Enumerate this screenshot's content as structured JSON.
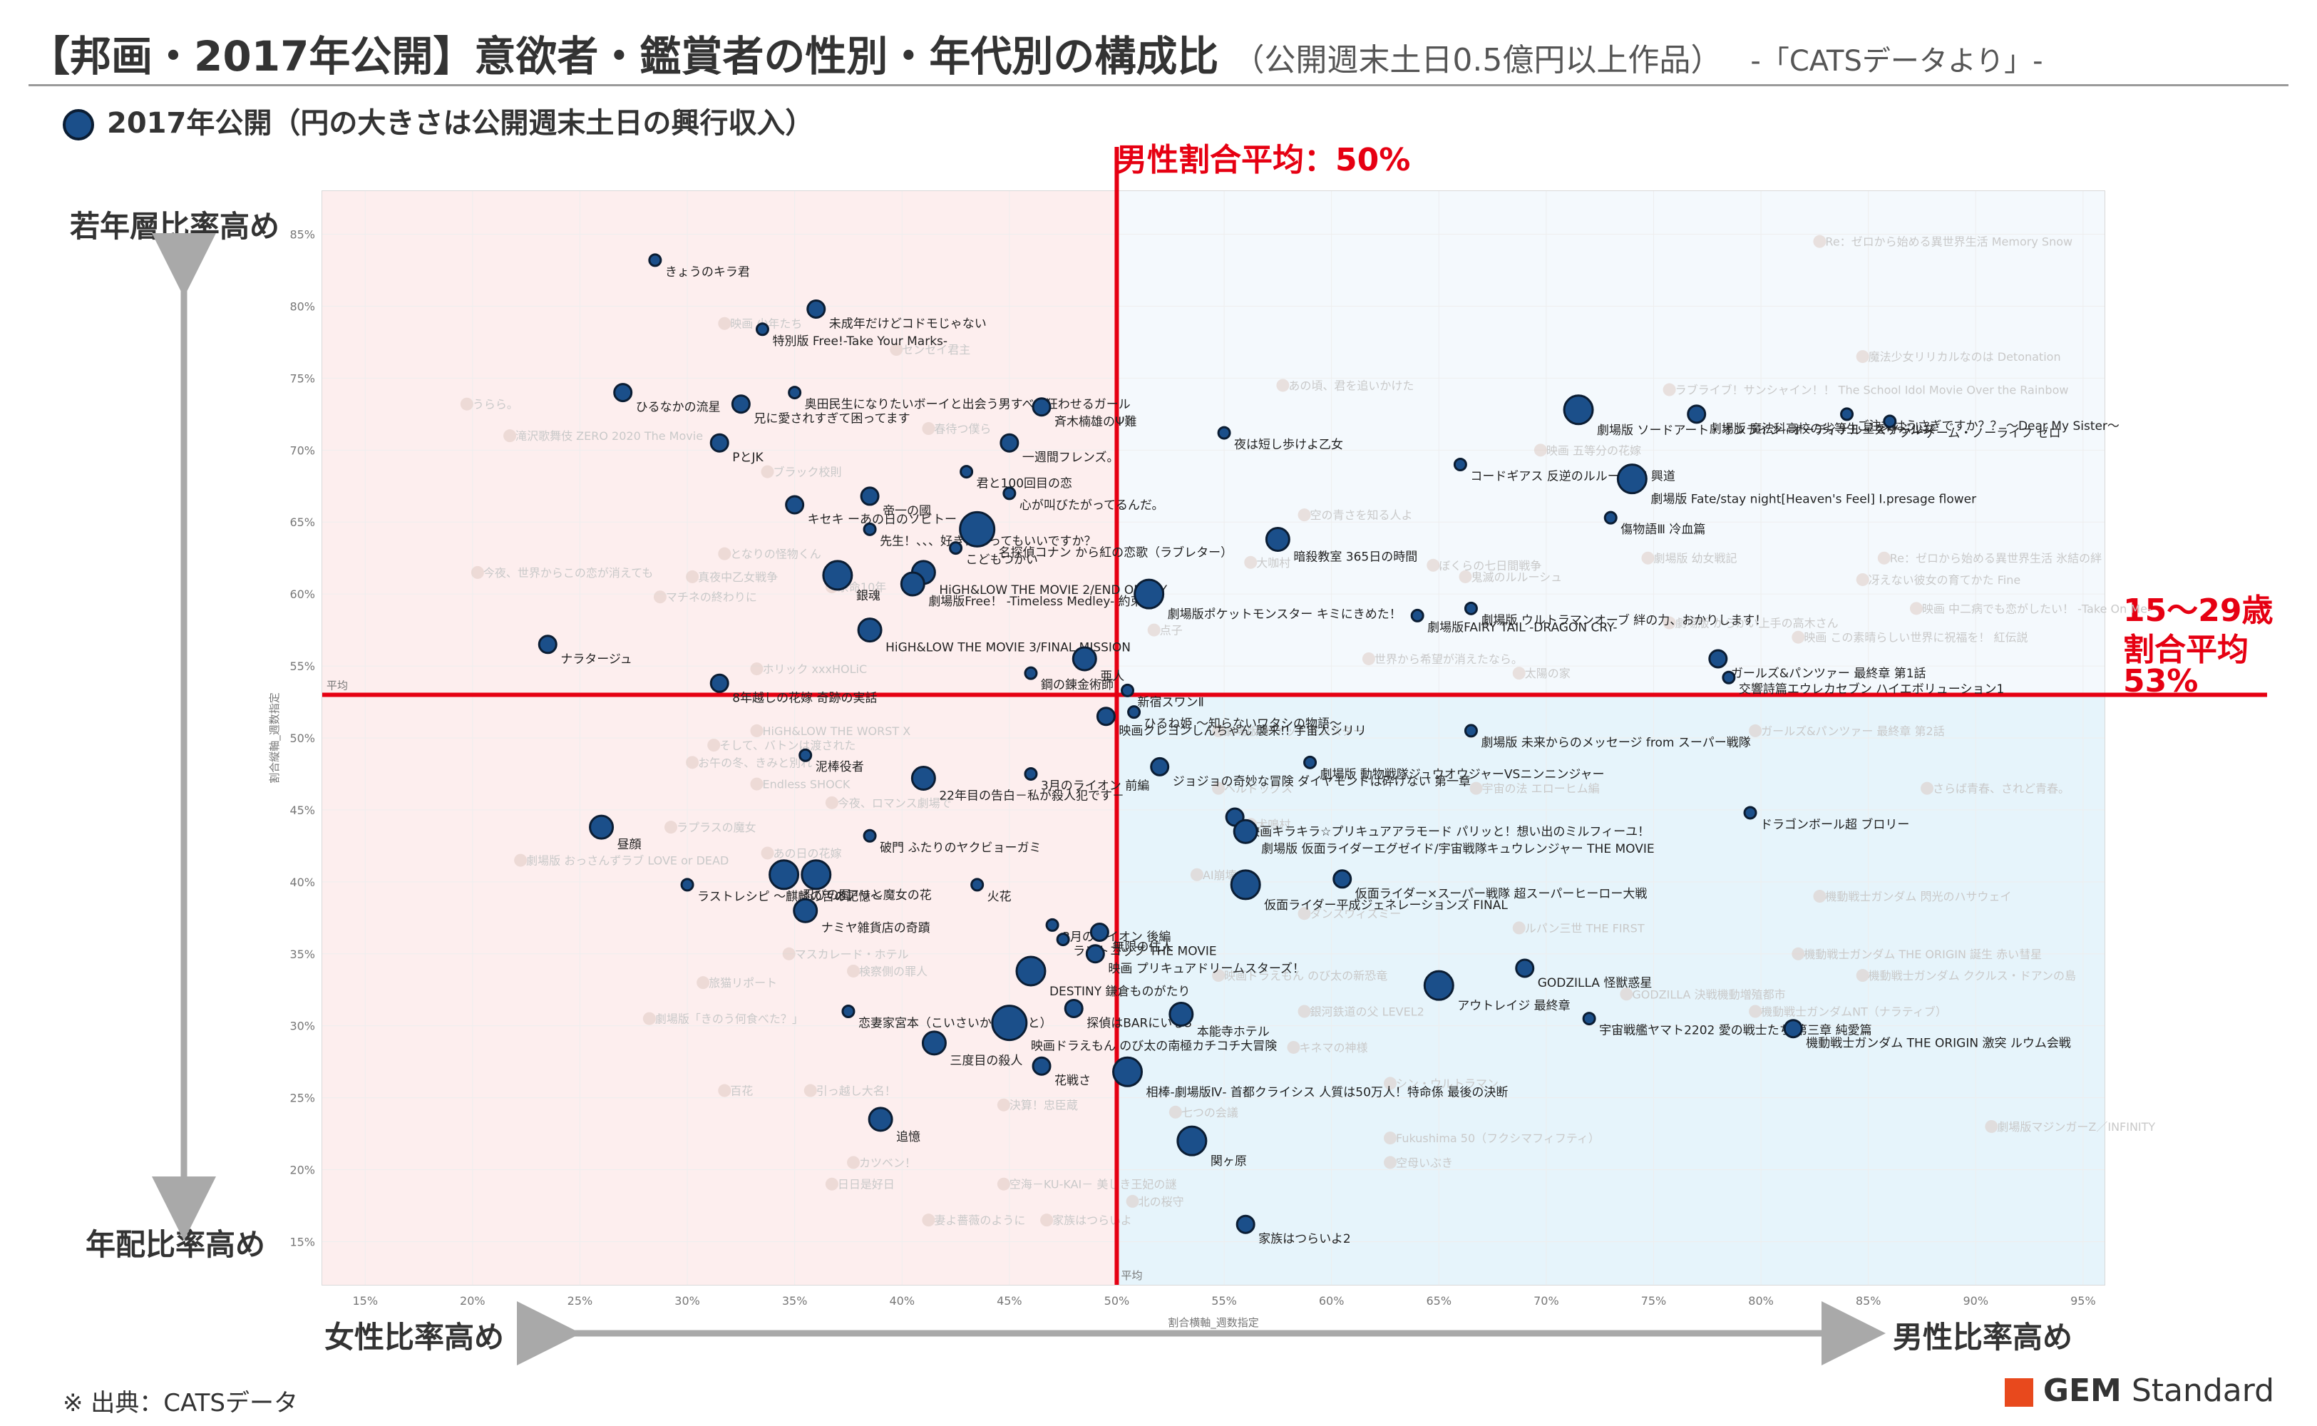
{
  "page": {
    "title": "【邦画・2017年公開】意欲者・鑑賞者の性別・年代別の構成比",
    "subtitle": "（公開週末土日0.5億円以上作品）",
    "source_tag": "-「CATSデータより」-",
    "legend_label": "2017年公開（円の大きさは公開週末土日の興行収入）",
    "y_top_label": "若年層比率高め",
    "y_bottom_label": "年配比率高め",
    "x_left_label": "女性比率高め",
    "x_right_label": "男性比率高め",
    "male_avg_label": "男性割合平均：50%",
    "youth_avg_label_1": "15～29歳",
    "youth_avg_label_2": "割合平均",
    "youth_avg_label_3": "53%",
    "footnote": "※ 出典：CATSデータ",
    "brand_bold": "GEM",
    "brand_rest": " Standard"
  },
  "chart_data": {
    "type": "scatter",
    "title": "【邦画・2017年公開】意欲者・鑑賞者の性別・年代別の構成比",
    "xlabel": "割合横軸_週数指定",
    "ylabel": "割合縦軸_週数指定",
    "xlim": [
      13,
      96
    ],
    "ylim": [
      12,
      88
    ],
    "xticks": [
      15,
      20,
      25,
      30,
      35,
      40,
      45,
      50,
      55,
      60,
      65,
      70,
      75,
      80,
      85,
      90,
      95
    ],
    "yticks": [
      15,
      20,
      25,
      30,
      35,
      40,
      45,
      50,
      55,
      60,
      65,
      70,
      75,
      80,
      85
    ],
    "avg_x": 50,
    "avg_y": 53,
    "avg_text_x": "平均",
    "avg_text_y": "平均",
    "colors": {
      "female_bg": "#fdeeee",
      "male_bg": "#e6f4fb",
      "avg_line": "#e60012",
      "point_fill": "#1b4f8a",
      "point_stroke": "#0b1d33"
    },
    "series": [
      {
        "name": "2017年公開",
        "size_meaning": "公開週末土日の興行収入",
        "points": [
          {
            "label": "きょうのキラ君",
            "x": 28.5,
            "y": 83.2,
            "s": 1
          },
          {
            "label": "未成年だけどコドモじゃない",
            "x": 36,
            "y": 79.8,
            "s": 2
          },
          {
            "label": "特別版 Free!-Take Your Marks-",
            "x": 33.5,
            "y": 78.4,
            "s": 1
          },
          {
            "label": "ひるなかの流星",
            "x": 27,
            "y": 74,
            "s": 2
          },
          {
            "label": "兄に愛されすぎて困ってます",
            "x": 32.5,
            "y": 73.2,
            "s": 2
          },
          {
            "label": "奥田民生になりたいボーイと出会う男すべて狂わせるガール",
            "x": 35,
            "y": 74,
            "s": 1
          },
          {
            "label": "PとJK",
            "x": 31.5,
            "y": 70.5,
            "s": 2
          },
          {
            "label": "斉木楠雄のΨ難",
            "x": 46.5,
            "y": 73,
            "s": 2
          },
          {
            "label": "一週間フレンズ。",
            "x": 45,
            "y": 70.5,
            "s": 2
          },
          {
            "label": "君と100回目の恋",
            "x": 43,
            "y": 68.5,
            "s": 1
          },
          {
            "label": "心が叫びたがってるんだ。",
            "x": 45,
            "y": 67,
            "s": 1
          },
          {
            "label": "キセキ ーあの日のソビトー",
            "x": 35,
            "y": 66.2,
            "s": 2
          },
          {
            "label": "帝一の國",
            "x": 38.5,
            "y": 66.8,
            "s": 2
          },
          {
            "label": "先生！、、、好きになってもいいですか？",
            "x": 38.5,
            "y": 64.5,
            "s": 1
          },
          {
            "label": "こどもつかい",
            "x": 42.5,
            "y": 63.2,
            "s": 1
          },
          {
            "label": "名探偵コナン から紅の恋歌（ラブレター）",
            "x": 43.5,
            "y": 64.5,
            "s": 5
          },
          {
            "label": "HiGH&LOW THE MOVIE 2/END OF SKY",
            "x": 41,
            "y": 61.5,
            "s": 3
          },
          {
            "label": "銀魂",
            "x": 37,
            "y": 61.3,
            "s": 4
          },
          {
            "label": "劇場版Free！ -Timeless Medley- 約束",
            "x": 40.5,
            "y": 60.7,
            "s": 3
          },
          {
            "label": "HiGH&LOW THE MOVIE 3/FINAL MISSION",
            "x": 38.5,
            "y": 57.5,
            "s": 3
          },
          {
            "label": "劇場版ポケットモンスター キミにきめた！",
            "x": 51.5,
            "y": 60,
            "s": 4
          },
          {
            "label": "ナラタージュ",
            "x": 23.5,
            "y": 56.5,
            "s": 2
          },
          {
            "label": "8年越しの花嫁 奇跡の実話",
            "x": 31.5,
            "y": 53.8,
            "s": 2
          },
          {
            "label": "鋼の錬金術師",
            "x": 46,
            "y": 54.5,
            "s": 1
          },
          {
            "label": "亜人",
            "x": 48.5,
            "y": 55.5,
            "s": 3
          },
          {
            "label": "新宿スワンⅡ",
            "x": 50.5,
            "y": 53.3,
            "s": 1
          },
          {
            "label": "ひるね姫 ～知らないワタシの物語～",
            "x": 50.8,
            "y": 51.8,
            "s": 1
          },
          {
            "label": "映画クレヨンしんちゃん 襲来!! 宇宙人シリリ",
            "x": 49.5,
            "y": 51.5,
            "s": 2
          },
          {
            "label": "泥棒役者",
            "x": 35.5,
            "y": 48.8,
            "s": 1
          },
          {
            "label": "ジョジョの奇妙な冒険 ダイヤモンドは砕けない 第一章",
            "x": 52,
            "y": 48,
            "s": 2
          },
          {
            "label": "3月のライオン 前編",
            "x": 46,
            "y": 47.5,
            "s": 1
          },
          {
            "label": "22年目の告白－私が殺人犯です－",
            "x": 41,
            "y": 47.2,
            "s": 3
          },
          {
            "label": "劇場版 動物戦隊ジュウオウジャーVSニンニンジャー",
            "x": 59,
            "y": 48.3,
            "s": 1
          },
          {
            "label": "映画キラキラ☆プリキュアアラモード パリッと！想い出のミルフィーユ！",
            "x": 55.5,
            "y": 44.5,
            "s": 2
          },
          {
            "label": "昼顔",
            "x": 26,
            "y": 43.8,
            "s": 3
          },
          {
            "label": "破門 ふたりのヤクビョーガミ",
            "x": 38.5,
            "y": 43.2,
            "s": 1
          },
          {
            "label": "劇場版 仮面ライダーエグゼイド/宇宙戦隊キュウレンジャー THE MOVIE",
            "x": 56,
            "y": 43.5,
            "s": 3
          },
          {
            "label": "忍びの国",
            "x": 34.5,
            "y": 40.5,
            "s": 4
          },
          {
            "label": "メアリと魔女の花",
            "x": 36,
            "y": 40.5,
            "s": 4
          },
          {
            "label": "ラストレシピ ～麒麟の舌の記憶～",
            "x": 30,
            "y": 39.8,
            "s": 1
          },
          {
            "label": "火花",
            "x": 43.5,
            "y": 39.8,
            "s": 1
          },
          {
            "label": "仮面ライダー×スーパー戦隊 超スーパーヒーロー大戦",
            "x": 60.5,
            "y": 40.2,
            "s": 2
          },
          {
            "label": "ナミヤ雑貨店の奇蹟",
            "x": 35.5,
            "y": 38,
            "s": 3
          },
          {
            "label": "仮面ライダー平成ジェネレーションズ FINAL",
            "x": 56,
            "y": 39.8,
            "s": 4
          },
          {
            "label": "3月のライオン 後編",
            "x": 47,
            "y": 37,
            "s": 1
          },
          {
            "label": "ラストコップ THE MOVIE",
            "x": 47.5,
            "y": 36,
            "s": 1
          },
          {
            "label": "無限の住人",
            "x": 49.2,
            "y": 36.5,
            "s": 2
          },
          {
            "label": "映画 プリキュアドリームスターズ！",
            "x": 49,
            "y": 35,
            "s": 2
          },
          {
            "label": "DESTINY 鎌倉ものがたり",
            "x": 46,
            "y": 33.8,
            "s": 4
          },
          {
            "label": "GODZILLA 怪獣惑星",
            "x": 69,
            "y": 34,
            "s": 2
          },
          {
            "label": "アウトレイジ 最終章",
            "x": 65,
            "y": 32.8,
            "s": 4
          },
          {
            "label": "探偵はBARにいる3",
            "x": 48,
            "y": 31.2,
            "s": 2
          },
          {
            "label": "本能寺ホテル",
            "x": 53,
            "y": 30.8,
            "s": 3
          },
          {
            "label": "恋妻家宮本（こいさいかみやもと）",
            "x": 37.5,
            "y": 31,
            "s": 1
          },
          {
            "label": "映画ドラえもん のび太の南極カチコチ大冒険",
            "x": 45,
            "y": 30.2,
            "s": 5
          },
          {
            "label": "宇宙戦艦ヤマト2202 愛の戦士たち 第三章 純愛篇",
            "x": 72,
            "y": 30.5,
            "s": 1
          },
          {
            "label": "機動戦士ガンダム THE ORIGIN 激突 ルウム会戦",
            "x": 81.5,
            "y": 29.8,
            "s": 2
          },
          {
            "label": "三度目の殺人",
            "x": 41.5,
            "y": 28.8,
            "s": 3
          },
          {
            "label": "花戦さ",
            "x": 46.5,
            "y": 27.2,
            "s": 2
          },
          {
            "label": "相棒-劇場版Ⅳ- 首都クライシス 人質は50万人！特命係 最後の決断",
            "x": 50.5,
            "y": 26.8,
            "s": 4
          },
          {
            "label": "追憶",
            "x": 39,
            "y": 23.5,
            "s": 3
          },
          {
            "label": "関ヶ原",
            "x": 53.5,
            "y": 22,
            "s": 4
          },
          {
            "label": "家族はつらいよ2",
            "x": 56,
            "y": 16.2,
            "s": 2
          },
          {
            "label": "劇場版 ソードアート・オンライン -オーディナル・スケール-",
            "x": 71.5,
            "y": 72.8,
            "s": 4
          },
          {
            "label": "劇場版 魔法科高校の劣等生 星を呼ぶ少女",
            "x": 77,
            "y": 72.5,
            "s": 2
          },
          {
            "label": "ご注文はうさぎですか？？ ～Dear My Sister～",
            "x": 84,
            "y": 72.5,
            "s": 1
          },
          {
            "label": "ノーゲーム・ノーライフ ゼロ",
            "x": 86,
            "y": 72,
            "s": 1
          },
          {
            "label": "夜は短し歩けよ乙女",
            "x": 55,
            "y": 71.2,
            "s": 1
          },
          {
            "label": "コードギアス 反逆のルルーシュⅠ 興道",
            "x": 66,
            "y": 69,
            "s": 1
          },
          {
            "label": "劇場版 Fate/stay night[Heaven's Feel] Ⅰ.presage flower",
            "x": 74,
            "y": 68,
            "s": 4
          },
          {
            "label": "傷物語Ⅲ 冷血篇",
            "x": 73,
            "y": 65.3,
            "s": 1
          },
          {
            "label": "劇場版 ウルトラマンオーブ 絆の力、おかりします！",
            "x": 66.5,
            "y": 59,
            "s": 1
          },
          {
            "label": "劇場版FAIRY TAIL -DRAGON CRY-",
            "x": 64,
            "y": 58.5,
            "s": 1
          },
          {
            "label": "ガールズ&パンツァー 最終章 第1話",
            "x": 78,
            "y": 55.5,
            "s": 2
          },
          {
            "label": "交響詩篇エウレカセブン ハイエボリューション1",
            "x": 78.5,
            "y": 54.2,
            "s": 1
          },
          {
            "label": "劇場版 未来からのメッセージ from スーパー戦隊",
            "x": 66.5,
            "y": 50.5,
            "s": 1
          },
          {
            "label": "ドラゴンボール超 ブロリー",
            "x": 79.5,
            "y": 44.8,
            "s": 1
          },
          {
            "label": "暗殺教室 365日の時間",
            "x": 57.5,
            "y": 63.8,
            "s": 3
          }
        ]
      }
    ],
    "background_labels": [
      {
        "t": "Re：ゼロから始める異世界生活 Memory Snow",
        "x": 83,
        "y": 84.5
      },
      {
        "t": "魔法少女リリカルなのは Detonation",
        "x": 85,
        "y": 76.5
      },
      {
        "t": "あの頃、君を追いかけた",
        "x": 58,
        "y": 74.5
      },
      {
        "t": "ラブライブ！サンシャイン！！ The School Idol Movie Over the Rainbow",
        "x": 76,
        "y": 74.2
      },
      {
        "t": "映画 五等分の花嫁",
        "x": 70,
        "y": 70
      },
      {
        "t": "ブラック校則",
        "x": 34,
        "y": 68.5
      },
      {
        "t": "空の青さを知る人よ",
        "x": 59,
        "y": 65.5
      },
      {
        "t": "劇場版 幼女戦記",
        "x": 75,
        "y": 62.5
      },
      {
        "t": "Re：ゼロから始める異世界生活 氷結の絆",
        "x": 86,
        "y": 62.5
      },
      {
        "t": "冴えない彼女の育てかた Fine",
        "x": 85,
        "y": 61
      },
      {
        "t": "映画 中二病でも恋がしたい！ -Take On Me-",
        "x": 87.5,
        "y": 59
      },
      {
        "t": "劇場版 からかい上手の高木さん",
        "x": 76,
        "y": 58
      },
      {
        "t": "映画 この素晴らしい世界に祝福を！ 紅伝説",
        "x": 82,
        "y": 57
      },
      {
        "t": "世界から希望が消えたなら。",
        "x": 62,
        "y": 55.5
      },
      {
        "t": "太陽の家",
        "x": 69,
        "y": 54.5
      },
      {
        "t": "ガールズ&パンツァー 最終章 第2話",
        "x": 80,
        "y": 50.5
      },
      {
        "t": "さらば青春、されど青春。",
        "x": 88,
        "y": 46.5
      },
      {
        "t": "宇宙の法 エローヒム編",
        "x": 67,
        "y": 46.5
      },
      {
        "t": "ヘルドッグス",
        "x": 55,
        "y": 46.5
      },
      {
        "t": "機動戦士ガンダム 閃光のハサウェイ",
        "x": 83,
        "y": 39
      },
      {
        "t": "ルパン三世 THE FIRST",
        "x": 69,
        "y": 36.8
      },
      {
        "t": "ダンスウィズミー",
        "x": 59,
        "y": 37.8
      },
      {
        "t": "機動戦士ガンダム THE ORIGIN 誕生 赤い彗星",
        "x": 82,
        "y": 35
      },
      {
        "t": "機動戦士ガンダム ククルス・ドアンの島",
        "x": 85,
        "y": 33.5
      },
      {
        "t": "GODZILLA 決戦機動増殖都市",
        "x": 74,
        "y": 32.2
      },
      {
        "t": "機動戦士ガンダムNT（ナラティブ）",
        "x": 80,
        "y": 31
      },
      {
        "t": "劇場版マジンガーZ／INFINITY",
        "x": 91,
        "y": 23
      },
      {
        "t": "Fukushima 50（フクシマフィフティ）",
        "x": 63,
        "y": 22.2
      },
      {
        "t": "空母いぶき",
        "x": 63,
        "y": 20.5
      },
      {
        "t": "シン・ウルトラマン",
        "x": 63,
        "y": 26
      },
      {
        "t": "キネマの神様",
        "x": 58.5,
        "y": 28.5
      },
      {
        "t": "映画ドラえもん のび太の新恐竜",
        "x": 55,
        "y": 33.5
      },
      {
        "t": "銀河鉄道の父 LEVEL2",
        "x": 59,
        "y": 31
      },
      {
        "t": "七つの会議",
        "x": 53,
        "y": 24
      },
      {
        "t": "北の桜守",
        "x": 51,
        "y": 17.8
      },
      {
        "t": "家族はつらいよ",
        "x": 47,
        "y": 16.5
      },
      {
        "t": "妻よ薔薇のように",
        "x": 41.5,
        "y": 16.5
      },
      {
        "t": "空海－KU-KAI－ 美しき王妃の謎",
        "x": 45,
        "y": 19
      },
      {
        "t": "日日是好日",
        "x": 37,
        "y": 19
      },
      {
        "t": "カツベン！",
        "x": 38,
        "y": 20.5
      },
      {
        "t": "引っ越し大名！",
        "x": 36,
        "y": 25.5
      },
      {
        "t": "決算！忠臣蔵",
        "x": 45,
        "y": 24.5
      },
      {
        "t": "百花",
        "x": 32,
        "y": 25.5
      },
      {
        "t": "劇場版「きのう何食べた？」",
        "x": 28.5,
        "y": 30.5
      },
      {
        "t": "旅猫リポート",
        "x": 31,
        "y": 33
      },
      {
        "t": "検察側の罪人",
        "x": 38,
        "y": 33.8
      },
      {
        "t": "マスカレード・ホテル",
        "x": 35,
        "y": 35
      },
      {
        "t": "劇場版 おっさんずラブ LOVE or DEAD",
        "x": 22.5,
        "y": 41.5
      },
      {
        "t": "ラプラスの魔女",
        "x": 29.5,
        "y": 43.8
      },
      {
        "t": "今夜、ロマンス劇場で",
        "x": 37,
        "y": 45.5
      },
      {
        "t": "Endless SHOCK",
        "x": 33.5,
        "y": 46.8
      },
      {
        "t": "お午の冬、きみと別れ",
        "x": 30.5,
        "y": 48.3
      },
      {
        "t": "そして、バトンは渡された",
        "x": 31.5,
        "y": 49.5
      },
      {
        "t": "HiGH&LOW THE WORST X",
        "x": 33.5,
        "y": 50.5
      },
      {
        "t": "ホリック xxxHOLiC",
        "x": 33.5,
        "y": 54.8
      },
      {
        "t": "今夜、世界からこの恋が消えても",
        "x": 20.5,
        "y": 61.5
      },
      {
        "t": "真夜中乙女戦争",
        "x": 30.5,
        "y": 61.2
      },
      {
        "t": "マチネの終わりに",
        "x": 29,
        "y": 59.8
      },
      {
        "t": "となりの怪物くん",
        "x": 32,
        "y": 62.8
      },
      {
        "t": "余命10年",
        "x": 37,
        "y": 60.5
      },
      {
        "t": "うらら。",
        "x": 20,
        "y": 73.2
      },
      {
        "t": "滝沢歌舞伎 ZERO 2020 The Movie",
        "x": 22,
        "y": 71
      },
      {
        "t": "映画 少年たち",
        "x": 32,
        "y": 78.8
      },
      {
        "t": "センセイ君主",
        "x": 40,
        "y": 77
      },
      {
        "t": "春待つ僕ら",
        "x": 41.5,
        "y": 71.5
      },
      {
        "t": "大咖村",
        "x": 56.5,
        "y": 62.2
      },
      {
        "t": "ぼくらの七日間戦争",
        "x": 65,
        "y": 62
      },
      {
        "t": "鬼滅のルルーシュ",
        "x": 66.5,
        "y": 61.2
      },
      {
        "t": "劇場版 ポケットモンスター",
        "x": 55,
        "y": 50.5
      },
      {
        "t": "犬鳴村",
        "x": 56.5,
        "y": 44
      },
      {
        "t": "AI崩壊",
        "x": 54,
        "y": 40.5
      },
      {
        "t": "あの日の花嫁",
        "x": 34,
        "y": 42
      },
      {
        "t": "点子",
        "x": 52,
        "y": 57.5
      }
    ]
  }
}
